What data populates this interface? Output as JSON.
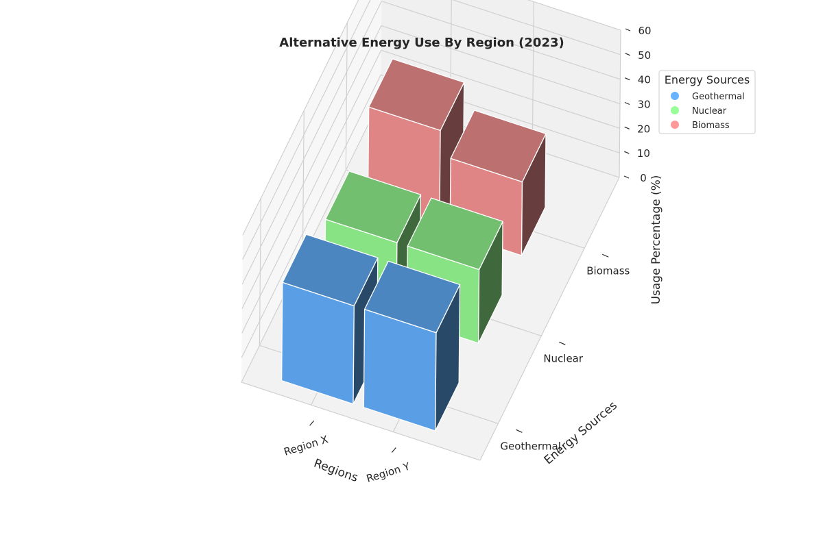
{
  "chart_data": {
    "type": "bar",
    "title": "Alternative Energy Use By Region (2023)",
    "x_label": "Regions",
    "y_label": "Energy Sources",
    "z_label": "Usage Percentage (%)",
    "regions": [
      "Region X",
      "Region Y"
    ],
    "sources": [
      "Geothermal",
      "Nuclear",
      "Biomass"
    ],
    "series": [
      {
        "name": "Geothermal",
        "color": "#5a9fe5",
        "values": [
          40,
          40
        ]
      },
      {
        "name": "Nuclear",
        "color": "#88e385",
        "values": [
          30,
          30
        ]
      },
      {
        "name": "Biomass",
        "color": "#e08585",
        "values": [
          40,
          30
        ]
      }
    ],
    "zlim": [
      0,
      60
    ],
    "z_ticks": [
      0,
      10,
      20,
      30,
      40,
      50,
      60
    ],
    "legend": {
      "title": "Energy Sources",
      "placement": "top-right"
    }
  }
}
